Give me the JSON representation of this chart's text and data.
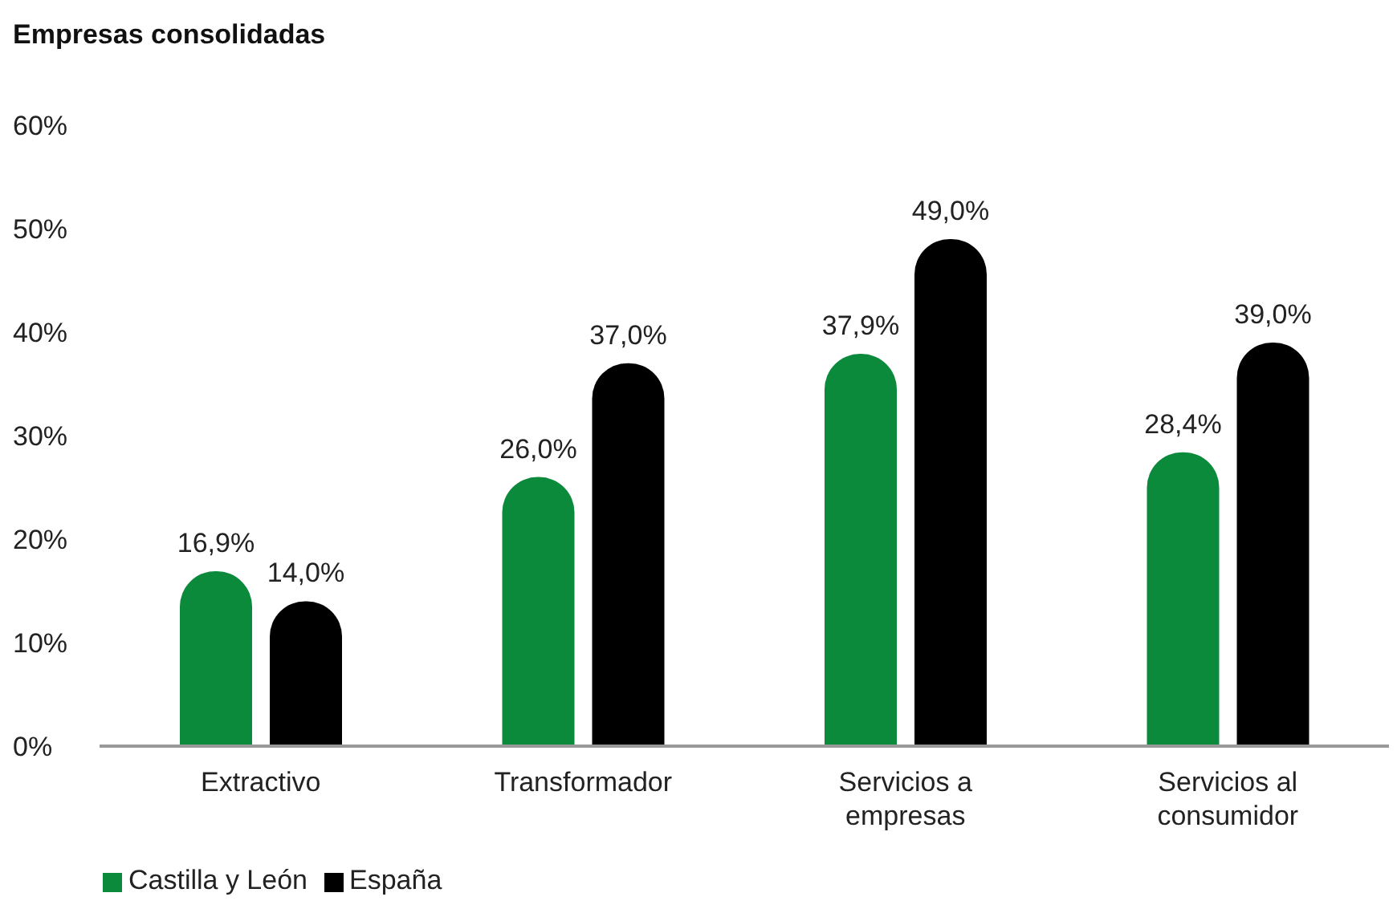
{
  "chart_data": {
    "type": "bar",
    "title": "Empresas consolidadas",
    "categories": [
      "Extractivo",
      "Transformador",
      "Servicios a empresas",
      "Servicios al consumidor"
    ],
    "series": [
      {
        "name": "Castilla y León",
        "color": "#0b8a3c",
        "values": [
          16.9,
          26.0,
          37.9,
          28.4
        ],
        "value_labels": [
          "16,9%",
          "26,0%",
          "37,9%",
          "28,4%"
        ]
      },
      {
        "name": "España",
        "color": "#000000",
        "values": [
          14.0,
          37.0,
          49.0,
          39.0
        ],
        "value_labels": [
          "14,0%",
          "37,0%",
          "49,0%",
          "39,0%"
        ]
      }
    ],
    "ylim": [
      0,
      60
    ],
    "yticks": [
      {
        "value": 0,
        "label": "0%"
      },
      {
        "value": 10,
        "label": "10%"
      },
      {
        "value": 20,
        "label": "20%"
      },
      {
        "value": 30,
        "label": "30%"
      },
      {
        "value": 40,
        "label": "40%"
      },
      {
        "value": 50,
        "label": "50%"
      },
      {
        "value": 60,
        "label": "60%"
      }
    ],
    "grid": false,
    "legend": "bottom left"
  }
}
